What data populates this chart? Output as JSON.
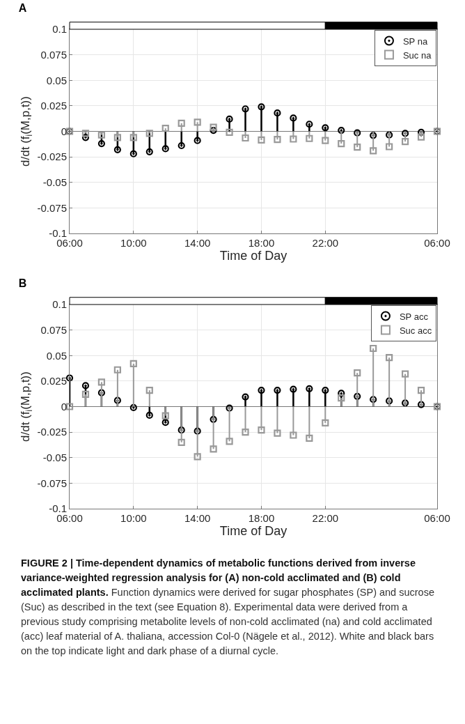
{
  "chart_data": [
    {
      "type": "lollipop",
      "title": "A",
      "xlabel": "Time of Day",
      "ylabel": "d/dt (f$_{i}$(M,p,t))",
      "categories": [
        "06:00",
        null,
        null,
        null,
        "10:00",
        null,
        null,
        null,
        "14:00",
        null,
        null,
        null,
        "18:00",
        null,
        null,
        null,
        "22:00",
        null,
        null,
        null,
        null,
        null,
        null,
        "06:00"
      ],
      "series": [
        {
          "name": "SP na",
          "color": "#000000",
          "marker": "circle",
          "values": [
            0,
            -0.006,
            -0.012,
            -0.018,
            -0.022,
            -0.02,
            -0.017,
            -0.014,
            -0.009,
            0.001,
            0.012,
            0.022,
            0.024,
            0.018,
            0.013,
            0.007,
            0.0035,
            0.001,
            -0.0015,
            -0.004,
            -0.0035,
            -0.002,
            -0.001,
            0
          ]
        },
        {
          "name": "Suc na",
          "color": "#999999",
          "marker": "square",
          "values": [
            0,
            -0.002,
            -0.0035,
            -0.006,
            -0.006,
            -0.002,
            0.003,
            0.008,
            0.009,
            0.004,
            -0.001,
            -0.0065,
            -0.0085,
            -0.008,
            -0.0075,
            -0.007,
            -0.009,
            -0.012,
            -0.0155,
            -0.019,
            -0.015,
            -0.01,
            -0.0055,
            0
          ]
        }
      ],
      "ylim": [
        -0.1,
        0.1
      ],
      "yticks": [
        -0.1,
        -0.075,
        -0.05,
        -0.025,
        0,
        0.025,
        0.05,
        0.075,
        0.1
      ],
      "grid": true,
      "legend": "top right"
    },
    {
      "type": "lollipop",
      "title": "B",
      "xlabel": "Time of Day",
      "ylabel": "d/dt (f$_{i}$(M,p,t))",
      "categories": [
        "06:00",
        null,
        null,
        null,
        "10:00",
        null,
        null,
        null,
        "14:00",
        null,
        null,
        null,
        "18:00",
        null,
        null,
        null,
        "22:00",
        null,
        null,
        null,
        null,
        null,
        null,
        "06:00"
      ],
      "series": [
        {
          "name": "SP acc",
          "color": "#000000",
          "marker": "circle",
          "values": [
            0.028,
            0.0205,
            0.0135,
            0.006,
            -0.001,
            -0.0085,
            -0.0155,
            -0.023,
            -0.024,
            -0.0125,
            -0.0015,
            0.0095,
            0.016,
            0.016,
            0.017,
            0.0175,
            0.016,
            0.013,
            0.01,
            0.007,
            0.0055,
            0.0035,
            0.002,
            0
          ]
        },
        {
          "name": "Suc acc",
          "color": "#999999",
          "marker": "square",
          "values": [
            0,
            0.012,
            0.024,
            0.036,
            0.042,
            0.016,
            -0.009,
            -0.035,
            -0.049,
            -0.0415,
            -0.034,
            -0.025,
            -0.023,
            -0.026,
            -0.028,
            -0.031,
            -0.016,
            0.0085,
            0.033,
            0.057,
            0.048,
            0.032,
            0.016,
            0
          ]
        }
      ],
      "ylim": [
        -0.1,
        0.1
      ],
      "yticks": [
        -0.1,
        -0.075,
        -0.05,
        -0.025,
        0,
        0.025,
        0.05,
        0.075,
        0.1
      ],
      "grid": true,
      "legend": "top right",
      "annotations": [
        "FIGURE 2 | Time-dependent dynamics of metabolic functions derived from inverse variance-weighted regression analysis for (A) non-cold acclimated and (B) cold acclimated plants.",
        "Function dynamics were derived for sugar phosphates (SP) and sucrose (Suc) as described in the text (see Equation 8). Experimental data were derived from a previous study comprising metabolite levels of non-cold acclimated (na) and cold acclimated (acc) leaf material of A. thaliana, accession Col-0 (Nägele et al., 2012). White and black bars on the top indicate light and dark phase of a diurnal cycle."
      ]
    }
  ]
}
